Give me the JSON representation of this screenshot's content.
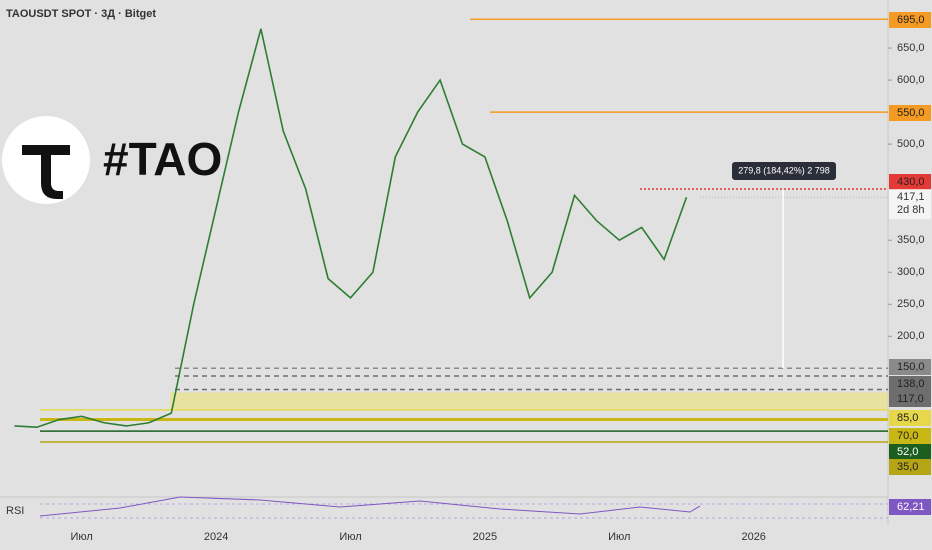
{
  "chart_data": {
    "type": "line",
    "title": "TAOUSDT SPOT · 3Д · Bitget",
    "logo_text": "#TAO",
    "categories": [
      null,
      null,
      null,
      "Июл",
      null,
      null,
      null,
      null,
      null,
      "2024",
      null,
      null,
      null,
      null,
      null,
      "Июл",
      null,
      null,
      null,
      null,
      null,
      "2025",
      null,
      null,
      null,
      null,
      null,
      "Июл",
      null,
      null,
      null,
      null,
      null,
      "2026",
      null
    ],
    "series": [
      {
        "name": "TAOUSDT",
        "color": "#2e7d32",
        "values": [
          60,
          58,
          70,
          75,
          65,
          60,
          65,
          80,
          250,
          400,
          550,
          680,
          520,
          430,
          290,
          260,
          300,
          480,
          550,
          600,
          500,
          480,
          380,
          260,
          300,
          420,
          380,
          350,
          370,
          320,
          417.1,
          null,
          null,
          null,
          null
        ]
      }
    ],
    "ylim": [
      -40,
      725
    ],
    "yticks": [
      {
        "value": 650,
        "label": "650,0"
      },
      {
        "value": 600,
        "label": "600,0"
      },
      {
        "value": 500,
        "label": "500,0"
      },
      {
        "value": 350,
        "label": "350,0"
      },
      {
        "value": 300,
        "label": "300,0"
      },
      {
        "value": 250,
        "label": "250,0"
      },
      {
        "value": 200,
        "label": "200,0"
      }
    ],
    "levels": [
      {
        "value": 695,
        "label": "695,0",
        "color": "#f59a23"
      },
      {
        "value": 550,
        "label": "550,0",
        "color": "#f59a23"
      },
      {
        "value": 430,
        "label": "430,0",
        "color": "#e53935"
      },
      {
        "value": 150,
        "label": "150,0",
        "color": "#8a8a8a"
      },
      {
        "value": 138,
        "label": "138,0",
        "color": "#6e6e6e"
      },
      {
        "value": 117,
        "label": "117,0",
        "color": "#6e6e6e"
      },
      {
        "value": 85,
        "label": "85,0",
        "color": "#e6d84a"
      },
      {
        "value": 70,
        "label": "70,0",
        "color": "#c9b814"
      },
      {
        "value": 52,
        "label": "52,0",
        "color": "#1b5e20"
      },
      {
        "value": 35,
        "label": "35,0",
        "color": "#b5a514"
      }
    ],
    "last_price": {
      "value": 417.1,
      "label": "417,1",
      "countdown": "2d 8h"
    },
    "measure": {
      "label": "279,8 (184,42%) 2 798"
    },
    "rsi": {
      "name": "RSI",
      "value": 62.21,
      "label": "62,21"
    }
  }
}
